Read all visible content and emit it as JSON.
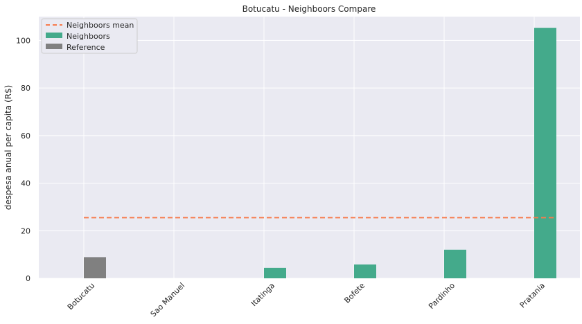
{
  "chart_data": {
    "type": "bar",
    "title": "Botucatu - Neighboors Compare",
    "xlabel": "",
    "ylabel": "despesa anual per capita (R$)",
    "categories": [
      "Botucatu",
      "Sao Manuel",
      "Itatinga",
      "Bofete",
      "Pardinho",
      "Pratania"
    ],
    "ylim": [
      0,
      110
    ],
    "yticks": [
      0,
      20,
      40,
      60,
      80,
      100
    ],
    "grid": true,
    "legend_position": "top-left",
    "series": [
      {
        "name": "Neighboors mean",
        "kind": "line",
        "style": "dashed",
        "color": "#f77b4c",
        "value": 25.5
      },
      {
        "name": "Neighboors",
        "kind": "bar",
        "color": "#44aa8b",
        "values": [
          null,
          0,
          4.4,
          5.8,
          12.0,
          105.3
        ]
      },
      {
        "name": "Reference",
        "kind": "bar",
        "color": "#808080",
        "values": [
          8.9,
          null,
          null,
          null,
          null,
          null
        ]
      }
    ]
  }
}
